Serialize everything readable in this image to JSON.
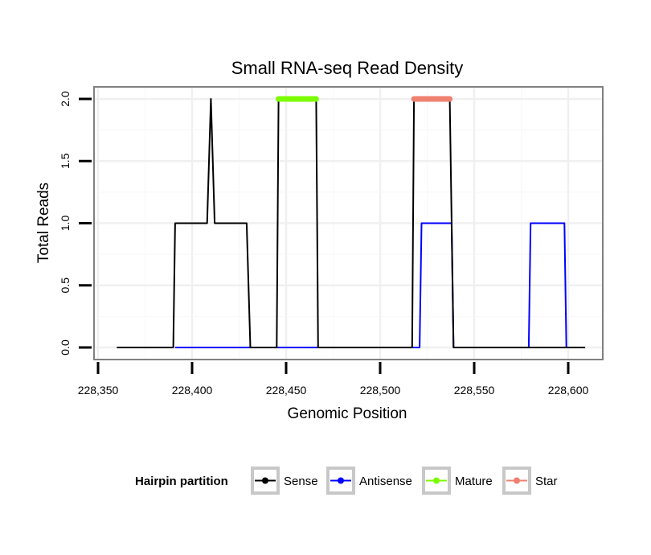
{
  "chart_data": {
    "type": "line",
    "title": "Small RNA-seq Read Density",
    "xlabel": "Genomic Position",
    "ylabel": "Total Reads",
    "xlim": [
      228360,
      228610
    ],
    "ylim": [
      -0.1,
      2.1
    ],
    "xticks": [
      228350,
      228400,
      228450,
      228500,
      228550,
      228600
    ],
    "xtick_labels": [
      "228,350",
      "228,400",
      "228,450",
      "228,500",
      "228,550",
      "228,600"
    ],
    "yticks": [
      0.0,
      0.5,
      1.0,
      1.5,
      2.0
    ],
    "ytick_labels": [
      "0.0",
      "0.5",
      "1.0",
      "1.5",
      "2.0"
    ],
    "grid": true,
    "legend_title": "Hairpin partition",
    "legend_position": "bottom",
    "series": [
      {
        "name": "Sense",
        "color": "#000000",
        "style": "line",
        "x": [
          228360,
          228390,
          228391,
          228408,
          228410,
          228412,
          228429,
          228431,
          228445,
          228446,
          228466,
          228467,
          228517,
          228518,
          228537,
          228539,
          228609
        ],
        "y": [
          0,
          0,
          1,
          1,
          2,
          1,
          1,
          0,
          0,
          2,
          2,
          0,
          0,
          2,
          2,
          0,
          0
        ]
      },
      {
        "name": "Antisense",
        "color": "#0000ff",
        "style": "line",
        "x": [
          228391,
          228521,
          228522,
          228538,
          228539,
          228579,
          228580,
          228598,
          228599
        ],
        "y": [
          0,
          0,
          1,
          1,
          0,
          0,
          1,
          1,
          0
        ]
      },
      {
        "name": "Mature",
        "color": "#7cfc00",
        "style": "segment",
        "x": [
          228446,
          228466
        ],
        "y": [
          2,
          2
        ]
      },
      {
        "name": "Star",
        "color": "#f08070",
        "style": "segment",
        "x": [
          228518,
          228537
        ],
        "y": [
          2,
          2
        ]
      }
    ]
  }
}
